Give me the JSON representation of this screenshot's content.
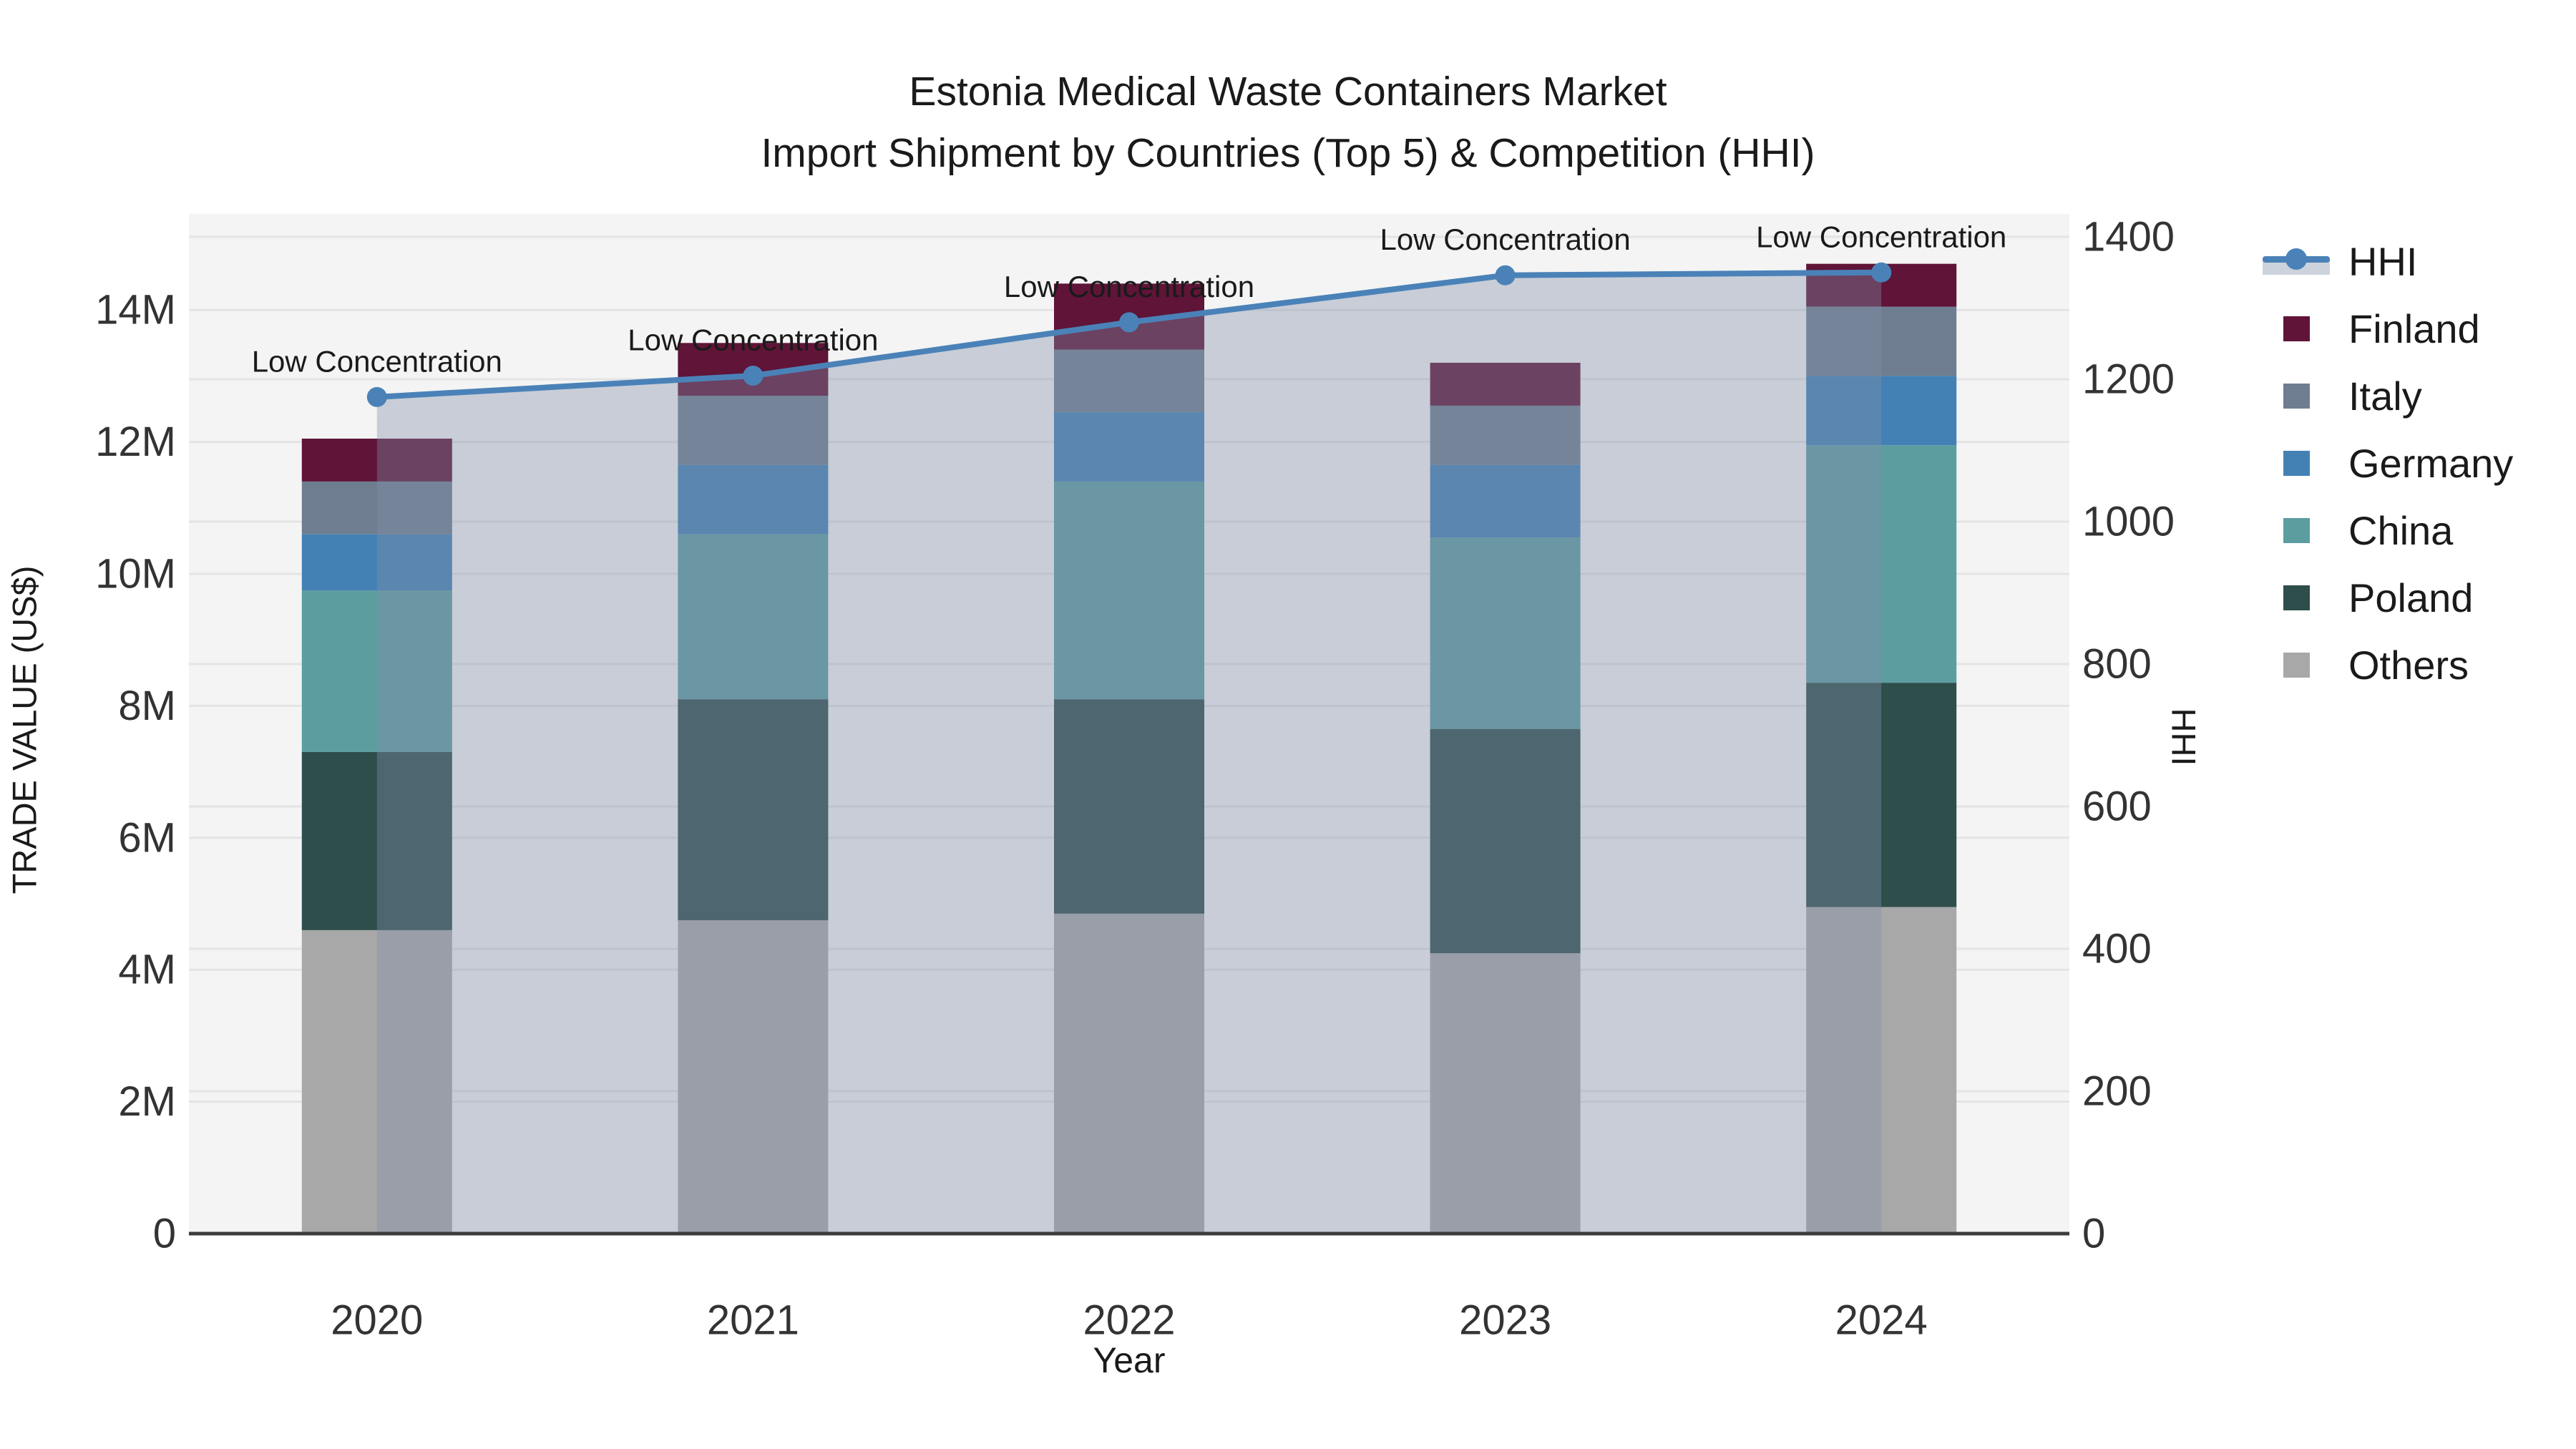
{
  "chart_data": {
    "type": "bar+line",
    "title": "Estonia Medical Waste Containers Market",
    "subtitle": "Import Shipment by Countries (Top 5) & Competition (HHI)",
    "xlabel": "Year",
    "ylabel_left": "TRADE VALUE (US$)",
    "ylabel_right": "HHI",
    "categories": [
      "2020",
      "2021",
      "2022",
      "2023",
      "2024"
    ],
    "bar_stack_note": "stacked import trade value, millions of US$, listed bottom-to-top",
    "series": [
      {
        "name": "Others",
        "color": "#a8a8a8",
        "values": [
          4.6,
          4.75,
          4.85,
          4.25,
          4.95
        ]
      },
      {
        "name": "Poland",
        "color": "#2e4e4c",
        "values": [
          2.7,
          3.35,
          3.25,
          3.4,
          3.4
        ]
      },
      {
        "name": "China",
        "color": "#5c9da0",
        "values": [
          2.45,
          2.5,
          3.3,
          2.9,
          3.6
        ]
      },
      {
        "name": "Germany",
        "color": "#4381b5",
        "values": [
          0.85,
          1.05,
          1.05,
          1.1,
          1.05
        ]
      },
      {
        "name": "Italy",
        "color": "#6e7e90",
        "values": [
          0.8,
          1.05,
          0.95,
          0.9,
          1.05
        ]
      },
      {
        "name": "Finland",
        "color": "#5f1438",
        "values": [
          0.65,
          0.8,
          1.0,
          0.65,
          0.65
        ]
      }
    ],
    "totals_millions": [
      12.05,
      13.5,
      14.4,
      13.2,
      14.7
    ],
    "line_series": {
      "name": "HHI",
      "color": "#4a82b8",
      "area_fill": "rgba(128,142,169,0.38)",
      "values": [
        1175,
        1205,
        1280,
        1346,
        1350
      ]
    },
    "annotations": [
      "Low Concentration",
      "Low Concentration",
      "Low Concentration",
      "Low Concentration",
      "Low Concentration"
    ],
    "left_axis": {
      "ticks": [
        {
          "v": 0,
          "label": "0"
        },
        {
          "v": 2,
          "label": "2M"
        },
        {
          "v": 4,
          "label": "4M"
        },
        {
          "v": 6,
          "label": "6M"
        },
        {
          "v": 8,
          "label": "8M"
        },
        {
          "v": 10,
          "label": "10M"
        },
        {
          "v": 12,
          "label": "12M"
        },
        {
          "v": 14,
          "label": "14M"
        }
      ]
    },
    "right_axis": {
      "ticks": [
        {
          "v": 0,
          "label": "0"
        },
        {
          "v": 200,
          "label": "200"
        },
        {
          "v": 400,
          "label": "400"
        },
        {
          "v": 600,
          "label": "600"
        },
        {
          "v": 800,
          "label": "800"
        },
        {
          "v": 1000,
          "label": "1000"
        },
        {
          "v": 1200,
          "label": "1200"
        },
        {
          "v": 1400,
          "label": "1400"
        }
      ]
    },
    "legend_order": [
      "HHI",
      "Finland",
      "Italy",
      "Germany",
      "China",
      "Poland",
      "Others"
    ],
    "colors": {
      "plot_bg": "#f4f4f4",
      "grid": "#e4e4e4",
      "axis_line": "#3c3c3c",
      "tick_text": "#333333",
      "annotation_text": "#1a1a1a"
    }
  }
}
